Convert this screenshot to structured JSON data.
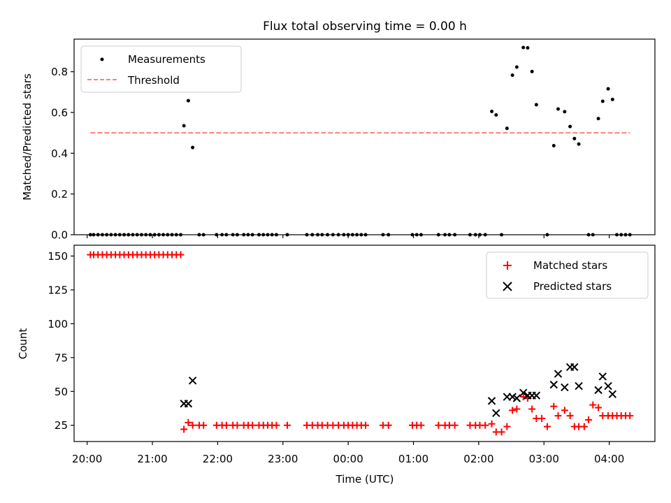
{
  "chart_data": [
    {
      "type": "scatter",
      "title": "Flux total observing time = 0.00 h",
      "xlabel": "",
      "ylabel": "Matched/Predicted stars",
      "xlim": [
        "19:48",
        "04:42"
      ],
      "ylim": [
        0,
        0.96
      ],
      "yticks": [
        "0.0",
        "0.2",
        "0.4",
        "0.6",
        "0.8"
      ],
      "legend": {
        "placement": "upper-left",
        "entries": [
          "Measurements",
          "Threshold"
        ]
      },
      "threshold": {
        "name": "Threshold",
        "value": 0.5,
        "x_start": "20:03",
        "x_end": "04:19",
        "color": "#ff7f7f"
      },
      "series": [
        {
          "name": "Measurements",
          "color": "#000000",
          "points": [
            [
              "20:03",
              0.0
            ],
            [
              "20:06",
              0.0
            ],
            [
              "20:10",
              0.0
            ],
            [
              "20:14",
              0.0
            ],
            [
              "20:18",
              0.0
            ],
            [
              "20:22",
              0.0
            ],
            [
              "20:26",
              0.0
            ],
            [
              "20:30",
              0.0
            ],
            [
              "20:34",
              0.0
            ],
            [
              "20:38",
              0.0
            ],
            [
              "20:42",
              0.0
            ],
            [
              "20:46",
              0.0
            ],
            [
              "20:50",
              0.0
            ],
            [
              "20:54",
              0.0
            ],
            [
              "20:58",
              0.0
            ],
            [
              "21:02",
              0.0
            ],
            [
              "21:06",
              0.0
            ],
            [
              "21:10",
              0.0
            ],
            [
              "21:14",
              0.0
            ],
            [
              "21:18",
              0.0
            ],
            [
              "21:22",
              0.0
            ],
            [
              "21:26",
              0.0
            ],
            [
              "21:29",
              0.535
            ],
            [
              "21:33",
              0.658
            ],
            [
              "21:37",
              0.428
            ],
            [
              "21:43",
              0.0
            ],
            [
              "21:47",
              0.0
            ],
            [
              "21:59",
              0.0
            ],
            [
              "22:04",
              0.0
            ],
            [
              "22:08",
              0.0
            ],
            [
              "22:14",
              0.0
            ],
            [
              "22:18",
              0.0
            ],
            [
              "22:24",
              0.0
            ],
            [
              "22:28",
              0.0
            ],
            [
              "22:32",
              0.0
            ],
            [
              "22:38",
              0.0
            ],
            [
              "22:42",
              0.0
            ],
            [
              "22:46",
              0.0
            ],
            [
              "22:50",
              0.0
            ],
            [
              "22:54",
              0.0
            ],
            [
              "23:04",
              0.0
            ],
            [
              "23:22",
              0.0
            ],
            [
              "23:27",
              0.0
            ],
            [
              "23:32",
              0.0
            ],
            [
              "23:36",
              0.0
            ],
            [
              "23:41",
              0.0
            ],
            [
              "23:46",
              0.0
            ],
            [
              "23:51",
              0.0
            ],
            [
              "23:56",
              0.0
            ],
            [
              "00:00",
              0.0
            ],
            [
              "00:04",
              0.0
            ],
            [
              "00:08",
              0.0
            ],
            [
              "00:12",
              0.0
            ],
            [
              "00:16",
              0.0
            ],
            [
              "00:32",
              0.0
            ],
            [
              "00:37",
              0.0
            ],
            [
              "00:59",
              0.0
            ],
            [
              "01:03",
              0.0
            ],
            [
              "01:07",
              0.0
            ],
            [
              "01:23",
              0.0
            ],
            [
              "01:29",
              0.0
            ],
            [
              "01:33",
              0.0
            ],
            [
              "01:38",
              0.0
            ],
            [
              "01:52",
              0.0
            ],
            [
              "01:57",
              0.0
            ],
            [
              "02:01",
              0.0
            ],
            [
              "02:06",
              0.0
            ],
            [
              "02:12",
              0.605
            ],
            [
              "02:16",
              0.588
            ],
            [
              "02:21",
              0.0
            ],
            [
              "02:26",
              0.522
            ],
            [
              "02:31",
              0.783
            ],
            [
              "02:35",
              0.823
            ],
            [
              "02:41",
              0.919
            ],
            [
              "02:45",
              0.917
            ],
            [
              "02:49",
              0.801
            ],
            [
              "02:53",
              0.638
            ],
            [
              "03:03",
              0.0
            ],
            [
              "03:09",
              0.437
            ],
            [
              "03:13",
              0.617
            ],
            [
              "03:19",
              0.604
            ],
            [
              "03:24",
              0.531
            ],
            [
              "03:28",
              0.472
            ],
            [
              "03:32",
              0.445
            ],
            [
              "03:41",
              0.0
            ],
            [
              "03:45",
              0.0
            ],
            [
              "03:50",
              0.57
            ],
            [
              "03:54",
              0.655
            ],
            [
              "03:59",
              0.716
            ],
            [
              "04:03",
              0.664
            ],
            [
              "04:07",
              0.0
            ],
            [
              "04:11",
              0.0
            ],
            [
              "04:15",
              0.0
            ],
            [
              "04:19",
              0.0
            ]
          ]
        }
      ]
    },
    {
      "type": "scatter",
      "title": "",
      "xlabel": "Time (UTC)",
      "ylabel": "Count",
      "xlim": [
        "19:48",
        "04:42"
      ],
      "ylim": [
        13,
        158
      ],
      "xticks": [
        "20:00",
        "21:00",
        "22:00",
        "23:00",
        "00:00",
        "01:00",
        "02:00",
        "03:00",
        "04:00"
      ],
      "yticks": [
        "25",
        "50",
        "75",
        "100",
        "125",
        "150"
      ],
      "legend": {
        "placement": "upper-right",
        "entries": [
          "Matched stars",
          "Predicted stars"
        ]
      },
      "series": [
        {
          "name": "Matched stars",
          "marker": "plus",
          "color": "#ff0000",
          "points": [
            [
              "20:03",
              151
            ],
            [
              "20:06",
              151
            ],
            [
              "20:10",
              151
            ],
            [
              "20:14",
              151
            ],
            [
              "20:18",
              151
            ],
            [
              "20:22",
              151
            ],
            [
              "20:26",
              151
            ],
            [
              "20:30",
              151
            ],
            [
              "20:34",
              151
            ],
            [
              "20:38",
              151
            ],
            [
              "20:42",
              151
            ],
            [
              "20:46",
              151
            ],
            [
              "20:50",
              151
            ],
            [
              "20:54",
              151
            ],
            [
              "20:58",
              151
            ],
            [
              "21:02",
              151
            ],
            [
              "21:06",
              151
            ],
            [
              "21:10",
              151
            ],
            [
              "21:14",
              151
            ],
            [
              "21:18",
              151
            ],
            [
              "21:22",
              151
            ],
            [
              "21:26",
              151
            ],
            [
              "21:29",
              22
            ],
            [
              "21:33",
              27
            ],
            [
              "21:37",
              25
            ],
            [
              "21:43",
              25
            ],
            [
              "21:47",
              25
            ],
            [
              "21:59",
              25
            ],
            [
              "22:04",
              25
            ],
            [
              "22:08",
              25
            ],
            [
              "22:14",
              25
            ],
            [
              "22:18",
              25
            ],
            [
              "22:24",
              25
            ],
            [
              "22:28",
              25
            ],
            [
              "22:32",
              25
            ],
            [
              "22:38",
              25
            ],
            [
              "22:42",
              25
            ],
            [
              "22:46",
              25
            ],
            [
              "22:50",
              25
            ],
            [
              "22:54",
              25
            ],
            [
              "23:04",
              25
            ],
            [
              "23:22",
              25
            ],
            [
              "23:27",
              25
            ],
            [
              "23:32",
              25
            ],
            [
              "23:36",
              25
            ],
            [
              "23:41",
              25
            ],
            [
              "23:46",
              25
            ],
            [
              "23:51",
              25
            ],
            [
              "23:56",
              25
            ],
            [
              "00:00",
              25
            ],
            [
              "00:04",
              25
            ],
            [
              "00:08",
              25
            ],
            [
              "00:12",
              25
            ],
            [
              "00:16",
              25
            ],
            [
              "00:32",
              25
            ],
            [
              "00:37",
              25
            ],
            [
              "00:59",
              25
            ],
            [
              "01:03",
              25
            ],
            [
              "01:07",
              25
            ],
            [
              "01:23",
              25
            ],
            [
              "01:29",
              25
            ],
            [
              "01:33",
              25
            ],
            [
              "01:38",
              25
            ],
            [
              "01:52",
              25
            ],
            [
              "01:57",
              25
            ],
            [
              "02:01",
              25
            ],
            [
              "02:06",
              25
            ],
            [
              "02:12",
              26
            ],
            [
              "02:16",
              20
            ],
            [
              "02:21",
              20
            ],
            [
              "02:26",
              24
            ],
            [
              "02:31",
              36
            ],
            [
              "02:35",
              37
            ],
            [
              "02:41",
              46
            ],
            [
              "02:45",
              45
            ],
            [
              "02:49",
              37
            ],
            [
              "02:53",
              30
            ],
            [
              "02:58",
              30
            ],
            [
              "03:03",
              24
            ],
            [
              "03:09",
              39
            ],
            [
              "03:13",
              32
            ],
            [
              "03:19",
              36
            ],
            [
              "03:24",
              32
            ],
            [
              "03:28",
              24
            ],
            [
              "03:32",
              24
            ],
            [
              "03:37",
              24
            ],
            [
              "03:41",
              29
            ],
            [
              "03:45",
              40
            ],
            [
              "03:50",
              38
            ],
            [
              "03:54",
              32
            ],
            [
              "03:59",
              32
            ],
            [
              "04:03",
              32
            ],
            [
              "04:07",
              32
            ],
            [
              "04:11",
              32
            ],
            [
              "04:15",
              32
            ],
            [
              "04:19",
              32
            ]
          ]
        },
        {
          "name": "Predicted stars",
          "marker": "x",
          "color": "#000000",
          "points": [
            [
              "21:29",
              41
            ],
            [
              "21:33",
              41
            ],
            [
              "21:37",
              58
            ],
            [
              "02:12",
              43
            ],
            [
              "02:16",
              34
            ],
            [
              "02:26",
              46
            ],
            [
              "02:31",
              46
            ],
            [
              "02:35",
              45
            ],
            [
              "02:41",
              49
            ],
            [
              "02:45",
              47
            ],
            [
              "02:49",
              47
            ],
            [
              "02:53",
              47
            ],
            [
              "03:09",
              55
            ],
            [
              "03:13",
              63
            ],
            [
              "03:19",
              53
            ],
            [
              "03:24",
              68
            ],
            [
              "03:28",
              68
            ],
            [
              "03:32",
              54
            ],
            [
              "03:50",
              51
            ],
            [
              "03:54",
              61
            ],
            [
              "03:59",
              54
            ],
            [
              "04:03",
              48
            ]
          ]
        }
      ]
    }
  ]
}
